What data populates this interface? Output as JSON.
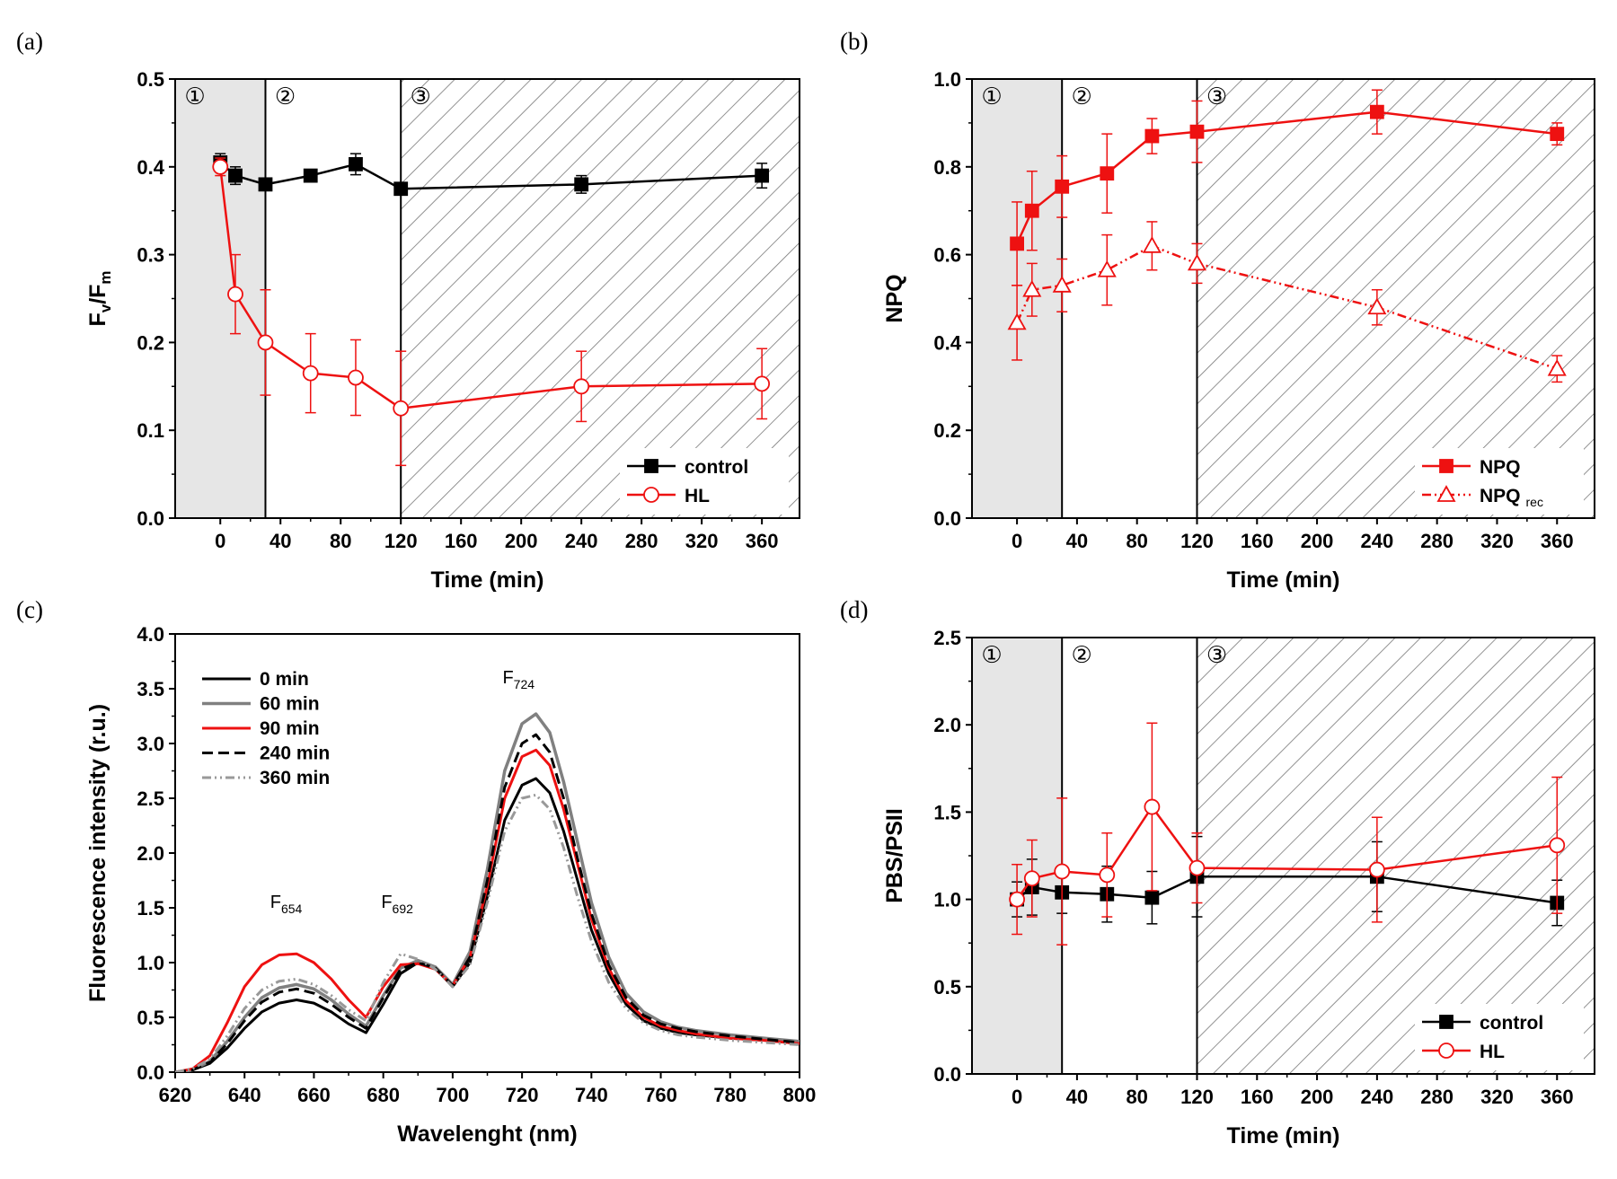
{
  "colors": {
    "black": "#000000",
    "red": "#ee1111",
    "gray": "#808080",
    "lightgray": "#999999",
    "shade": "#e6e6e6",
    "hatch": "#777777"
  },
  "chart_data": [
    {
      "id": "a",
      "panel_label": "(a)",
      "type": "line",
      "xlabel": "Time (min)",
      "ylabel_main": "F",
      "ylabel_sub1": "v",
      "ylabel_mid": "/F",
      "ylabel_sub2": "m",
      "xlim": [
        -30,
        385
      ],
      "ylim": [
        0,
        0.5
      ],
      "xticks": [
        0,
        40,
        80,
        120,
        160,
        200,
        240,
        280,
        320,
        360
      ],
      "yticks": [
        0.0,
        0.1,
        0.2,
        0.3,
        0.4,
        0.5
      ],
      "yticks_text": [
        "0.0",
        "0.1",
        "0.2",
        "0.3",
        "0.4",
        "0.5"
      ],
      "regions": [
        {
          "label": "①",
          "from": -30,
          "to": 30,
          "style": "shaded"
        },
        {
          "label": "②",
          "from": 30,
          "to": 120,
          "style": "plain"
        },
        {
          "label": "③",
          "from": 120,
          "to": 385,
          "style": "hatched"
        }
      ],
      "legend_position": "bottom-right",
      "series": [
        {
          "name": "control",
          "color": "#000000",
          "marker": "square",
          "filled": true,
          "dash": "",
          "x": [
            0,
            10,
            30,
            60,
            90,
            120,
            240,
            360
          ],
          "y": [
            0.405,
            0.39,
            0.38,
            0.39,
            0.403,
            0.375,
            0.38,
            0.39
          ],
          "err": [
            0.01,
            0.01,
            0.005,
            0.005,
            0.012,
            0.005,
            0.01,
            0.014
          ]
        },
        {
          "name": "HL",
          "color": "#ee1111",
          "marker": "circle",
          "filled": false,
          "dash": "",
          "x": [
            0,
            10,
            30,
            60,
            90,
            120,
            240,
            360
          ],
          "y": [
            0.4,
            0.255,
            0.2,
            0.165,
            0.16,
            0.125,
            0.15,
            0.153
          ],
          "err": [
            0.01,
            0.045,
            0.06,
            0.045,
            0.043,
            0.065,
            0.04,
            0.04
          ]
        }
      ]
    },
    {
      "id": "b",
      "panel_label": "(b)",
      "type": "line",
      "xlabel": "Time (min)",
      "ylabel_main": "NPQ",
      "xlim": [
        -30,
        385
      ],
      "ylim": [
        0,
        1.0
      ],
      "xticks": [
        0,
        40,
        80,
        120,
        160,
        200,
        240,
        280,
        320,
        360
      ],
      "yticks": [
        0.0,
        0.2,
        0.4,
        0.6,
        0.8,
        1.0
      ],
      "yticks_text": [
        "0.0",
        "0.2",
        "0.4",
        "0.6",
        "0.8",
        "1.0"
      ],
      "regions": [
        {
          "label": "①",
          "from": -30,
          "to": 30,
          "style": "shaded"
        },
        {
          "label": "②",
          "from": 30,
          "to": 120,
          "style": "plain"
        },
        {
          "label": "③",
          "from": 120,
          "to": 385,
          "style": "hatched"
        }
      ],
      "legend_position": "bottom-right",
      "series": [
        {
          "name": "NPQ",
          "sub": "",
          "color": "#ee1111",
          "marker": "square",
          "filled": true,
          "dash": "",
          "x": [
            0,
            10,
            30,
            60,
            90,
            120,
            240,
            360
          ],
          "y": [
            0.625,
            0.7,
            0.755,
            0.785,
            0.87,
            0.88,
            0.925,
            0.875
          ],
          "err": [
            0.095,
            0.09,
            0.07,
            0.09,
            0.04,
            0.07,
            0.05,
            0.025
          ]
        },
        {
          "name": "NPQ",
          "sub": "rec",
          "color": "#ee1111",
          "marker": "triangle",
          "filled": false,
          "dash": "10,4,2,4,2,4",
          "x": [
            0,
            10,
            30,
            60,
            90,
            120,
            240,
            360
          ],
          "y": [
            0.445,
            0.52,
            0.53,
            0.565,
            0.62,
            0.58,
            0.48,
            0.34
          ],
          "err": [
            0.085,
            0.06,
            0.06,
            0.08,
            0.055,
            0.045,
            0.04,
            0.03
          ]
        }
      ]
    },
    {
      "id": "c",
      "panel_label": "(c)",
      "type": "line",
      "xlabel": "Wavelenght (nm)",
      "ylabel_main": "Fluorescence intensity (r.u.)",
      "xlim": [
        620,
        800
      ],
      "ylim": [
        0,
        4.0
      ],
      "xticks": [
        620,
        640,
        660,
        680,
        700,
        720,
        740,
        760,
        780,
        800
      ],
      "yticks": [
        0.0,
        0.5,
        1.0,
        1.5,
        2.0,
        2.5,
        3.0,
        3.5,
        4.0
      ],
      "yticks_text": [
        "0.0",
        "0.5",
        "1.0",
        "1.5",
        "2.0",
        "2.5",
        "3.0",
        "3.5",
        "4.0"
      ],
      "legend_position": "top-left",
      "annotations": [
        {
          "main": "F",
          "sub": "654",
          "x": 652,
          "y": 1.5
        },
        {
          "main": "F",
          "sub": "692",
          "x": 684,
          "y": 1.5
        },
        {
          "main": "F",
          "sub": "724",
          "x": 719,
          "y": 3.55
        }
      ],
      "series": [
        {
          "name": "0 min",
          "color": "#000000",
          "dash": "",
          "width": 3,
          "x": [
            620,
            625,
            630,
            635,
            640,
            645,
            650,
            655,
            660,
            665,
            670,
            675,
            680,
            685,
            690,
            695,
            700,
            705,
            710,
            715,
            720,
            724,
            728,
            732,
            736,
            740,
            745,
            750,
            755,
            760,
            765,
            770,
            780,
            790,
            800
          ],
          "y": [
            0,
            0.02,
            0.08,
            0.22,
            0.4,
            0.55,
            0.63,
            0.66,
            0.63,
            0.55,
            0.44,
            0.36,
            0.62,
            0.9,
            1.0,
            0.95,
            0.78,
            1.0,
            1.6,
            2.3,
            2.62,
            2.68,
            2.55,
            2.2,
            1.75,
            1.3,
            0.9,
            0.62,
            0.47,
            0.4,
            0.36,
            0.34,
            0.31,
            0.29,
            0.26
          ]
        },
        {
          "name": "60 min",
          "color": "#808080",
          "dash": "",
          "width": 3.5,
          "x": [
            620,
            625,
            630,
            635,
            640,
            645,
            650,
            655,
            660,
            665,
            670,
            675,
            680,
            685,
            690,
            695,
            700,
            705,
            710,
            715,
            720,
            724,
            728,
            732,
            736,
            740,
            745,
            750,
            755,
            760,
            765,
            770,
            780,
            790,
            800
          ],
          "y": [
            0,
            0.02,
            0.1,
            0.28,
            0.5,
            0.68,
            0.77,
            0.8,
            0.76,
            0.66,
            0.53,
            0.42,
            0.7,
            0.95,
            1.02,
            0.96,
            0.8,
            1.1,
            1.85,
            2.75,
            3.18,
            3.27,
            3.1,
            2.65,
            2.1,
            1.55,
            1.05,
            0.72,
            0.55,
            0.46,
            0.41,
            0.38,
            0.34,
            0.31,
            0.28
          ]
        },
        {
          "name": "90 min",
          "color": "#ee1111",
          "dash": "",
          "width": 3,
          "x": [
            620,
            625,
            630,
            635,
            640,
            645,
            650,
            655,
            660,
            665,
            670,
            675,
            680,
            685,
            690,
            695,
            700,
            705,
            710,
            715,
            720,
            724,
            728,
            732,
            736,
            740,
            745,
            750,
            755,
            760,
            765,
            770,
            780,
            790,
            800
          ],
          "y": [
            0,
            0.03,
            0.15,
            0.45,
            0.78,
            0.98,
            1.07,
            1.08,
            1.0,
            0.85,
            0.66,
            0.5,
            0.78,
            0.98,
            0.99,
            0.94,
            0.79,
            1.05,
            1.7,
            2.5,
            2.88,
            2.94,
            2.8,
            2.4,
            1.9,
            1.4,
            0.95,
            0.65,
            0.5,
            0.42,
            0.38,
            0.35,
            0.31,
            0.29,
            0.26
          ]
        },
        {
          "name": "240 min",
          "color": "#000000",
          "dash": "12,6",
          "width": 3,
          "x": [
            620,
            625,
            630,
            635,
            640,
            645,
            650,
            655,
            660,
            665,
            670,
            675,
            680,
            685,
            690,
            695,
            700,
            705,
            710,
            715,
            720,
            724,
            728,
            732,
            736,
            740,
            745,
            750,
            755,
            760,
            765,
            770,
            780,
            790,
            800
          ],
          "y": [
            0,
            0.02,
            0.09,
            0.26,
            0.47,
            0.64,
            0.73,
            0.76,
            0.72,
            0.62,
            0.5,
            0.4,
            0.68,
            0.94,
            1.0,
            0.95,
            0.79,
            1.05,
            1.75,
            2.6,
            3.0,
            3.08,
            2.92,
            2.5,
            1.95,
            1.45,
            0.98,
            0.68,
            0.52,
            0.44,
            0.4,
            0.37,
            0.33,
            0.3,
            0.27
          ]
        },
        {
          "name": "360 min",
          "color": "#999999",
          "dash": "10,4,2,4,2,4",
          "width": 3,
          "x": [
            620,
            625,
            630,
            635,
            640,
            645,
            650,
            655,
            660,
            665,
            670,
            675,
            680,
            685,
            690,
            695,
            700,
            705,
            710,
            715,
            720,
            724,
            728,
            732,
            736,
            740,
            745,
            750,
            755,
            760,
            765,
            770,
            780,
            790,
            800
          ],
          "y": [
            0,
            0.03,
            0.12,
            0.33,
            0.58,
            0.75,
            0.83,
            0.85,
            0.8,
            0.7,
            0.57,
            0.47,
            0.82,
            1.08,
            1.03,
            0.94,
            0.78,
            0.98,
            1.55,
            2.2,
            2.5,
            2.53,
            2.4,
            2.05,
            1.6,
            1.2,
            0.82,
            0.58,
            0.45,
            0.38,
            0.34,
            0.32,
            0.29,
            0.27,
            0.25
          ]
        }
      ]
    },
    {
      "id": "d",
      "panel_label": "(d)",
      "type": "line",
      "xlabel": "Time (min)",
      "ylabel_main": "PBS/PSII",
      "xlim": [
        -30,
        385
      ],
      "ylim": [
        0,
        2.5
      ],
      "xticks": [
        0,
        40,
        80,
        120,
        160,
        200,
        240,
        280,
        320,
        360
      ],
      "yticks": [
        0.0,
        0.5,
        1.0,
        1.5,
        2.0,
        2.5
      ],
      "yticks_text": [
        "0.0",
        "0.5",
        "1.0",
        "1.5",
        "2.0",
        "2.5"
      ],
      "regions": [
        {
          "label": "①",
          "from": -30,
          "to": 30,
          "style": "shaded"
        },
        {
          "label": "②",
          "from": 30,
          "to": 120,
          "style": "plain"
        },
        {
          "label": "③",
          "from": 120,
          "to": 385,
          "style": "hatched"
        }
      ],
      "legend_position": "bottom-right",
      "series": [
        {
          "name": "control",
          "color": "#000000",
          "marker": "square",
          "filled": true,
          "dash": "",
          "x": [
            0,
            10,
            30,
            60,
            90,
            120,
            240,
            360
          ],
          "y": [
            1.0,
            1.07,
            1.04,
            1.03,
            1.01,
            1.13,
            1.13,
            0.98
          ],
          "err": [
            0.1,
            0.16,
            0.12,
            0.16,
            0.15,
            0.23,
            0.2,
            0.13
          ]
        },
        {
          "name": "HL",
          "color": "#ee1111",
          "marker": "circle",
          "filled": false,
          "dash": "",
          "x": [
            0,
            10,
            30,
            60,
            90,
            120,
            240,
            360
          ],
          "y": [
            1.0,
            1.12,
            1.16,
            1.14,
            1.53,
            1.18,
            1.17,
            1.31
          ],
          "err": [
            0.2,
            0.22,
            0.42,
            0.24,
            0.48,
            0.2,
            0.3,
            0.39
          ]
        }
      ]
    }
  ]
}
